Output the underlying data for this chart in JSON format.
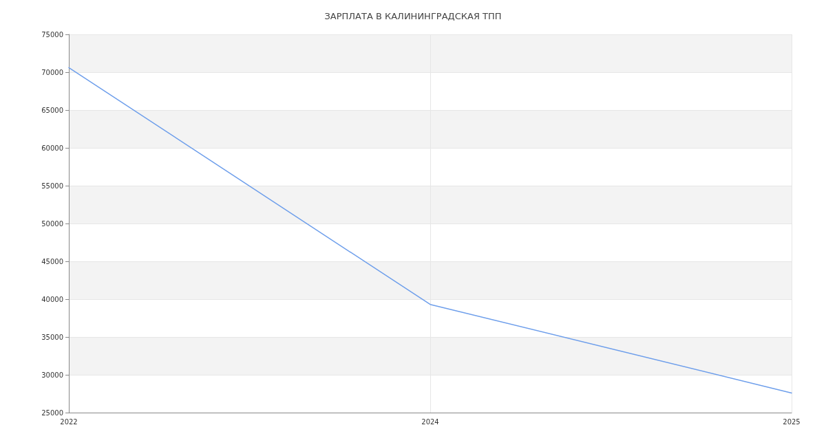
{
  "chart_data": {
    "type": "line",
    "title": "ЗАРПЛАТА В КАЛИНИНГРАДСКАЯ ТПП",
    "categories": [
      "2022",
      "2024",
      "2025"
    ],
    "series": [
      {
        "color": "#6d9eeb",
        "values": [
          70600,
          39300,
          27600
        ]
      }
    ],
    "ylim": [
      25000,
      75000
    ],
    "yticks": [
      25000,
      30000,
      35000,
      40000,
      45000,
      50000,
      55000,
      60000,
      65000,
      70000,
      75000
    ],
    "grid": true,
    "marker": "none",
    "line_style": "solid"
  }
}
